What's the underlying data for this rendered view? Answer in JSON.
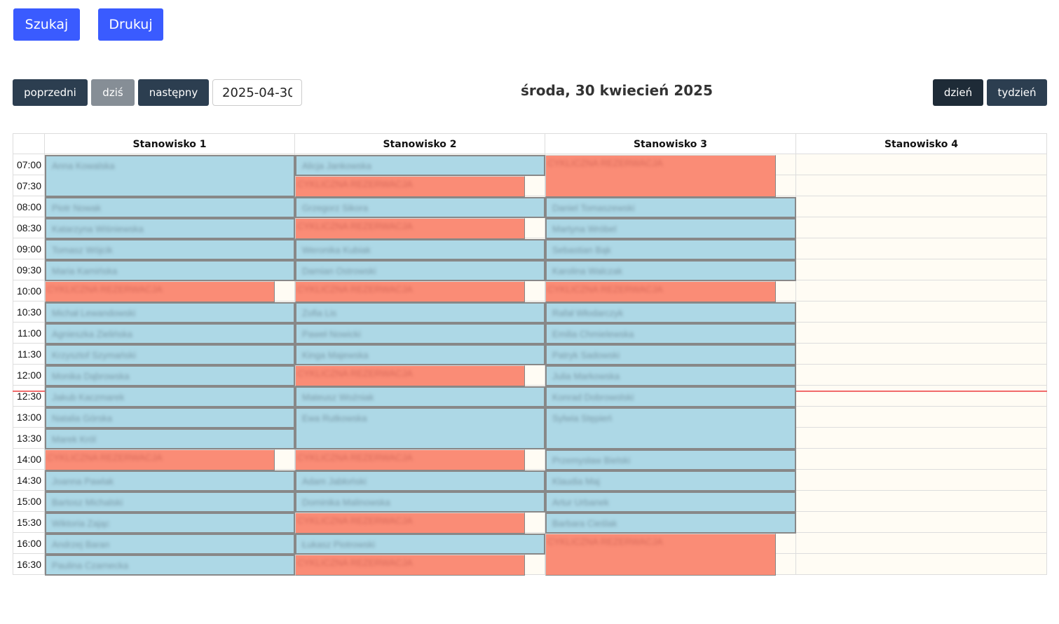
{
  "toolbar": {
    "search_label": "Szukaj",
    "print_label": "Drukuj"
  },
  "nav": {
    "prev_label": "poprzedni",
    "today_label": "dziś",
    "next_label": "następny",
    "date_value": "2025-04-30",
    "title": "środa, 30 kwiecień 2025",
    "day_label": "dzień",
    "week_label": "tydzień",
    "active_view": "dzień"
  },
  "colors": {
    "accent": "#3a5bff",
    "reservation": "#add8e6",
    "cyclic": "#fa8c76",
    "now_line": "#f06b6b"
  },
  "current_time_marker": "12:41",
  "columns": [
    "Stanowisko 1",
    "Stanowisko 2",
    "Stanowisko 3",
    "Stanowisko 4"
  ],
  "times": [
    "07:00",
    "07:30",
    "08:00",
    "08:30",
    "09:00",
    "09:30",
    "10:00",
    "10:30",
    "11:00",
    "11:30",
    "12:00",
    "12:30",
    "13:00",
    "13:30",
    "14:00",
    "14:30",
    "15:00",
    "15:30",
    "16:00",
    "16:30"
  ],
  "events": [
    {
      "col": 0,
      "start": "07:00",
      "end": "08:00",
      "label": "Anna Kowalska",
      "type": "normal"
    },
    {
      "col": 0,
      "start": "08:00",
      "end": "08:30",
      "label": "Piotr Nowak",
      "type": "normal"
    },
    {
      "col": 0,
      "start": "08:30",
      "end": "09:00",
      "label": "Katarzyna Wiśniewska",
      "type": "normal"
    },
    {
      "col": 0,
      "start": "09:00",
      "end": "09:30",
      "label": "Tomasz Wójcik",
      "type": "normal"
    },
    {
      "col": 0,
      "start": "09:30",
      "end": "10:00",
      "label": "Maria Kamińska",
      "type": "normal"
    },
    {
      "col": 0,
      "start": "10:00",
      "end": "10:30",
      "label": "CYKLICZNA REZERWACJA",
      "type": "cyclic"
    },
    {
      "col": 0,
      "start": "10:30",
      "end": "11:00",
      "label": "Michał Lewandowski",
      "type": "normal"
    },
    {
      "col": 0,
      "start": "11:00",
      "end": "11:30",
      "label": "Agnieszka Zielińska",
      "type": "normal"
    },
    {
      "col": 0,
      "start": "11:30",
      "end": "12:00",
      "label": "Krzysztof Szymański",
      "type": "normal"
    },
    {
      "col": 0,
      "start": "12:00",
      "end": "12:30",
      "label": "Monika Dąbrowska",
      "type": "normal"
    },
    {
      "col": 0,
      "start": "12:30",
      "end": "13:00",
      "label": "Jakub Kaczmarek",
      "type": "normal"
    },
    {
      "col": 0,
      "start": "13:00",
      "end": "13:30",
      "label": "Natalia Górska",
      "type": "normal"
    },
    {
      "col": 0,
      "start": "13:30",
      "end": "14:00",
      "label": "Marek Król",
      "type": "normal"
    },
    {
      "col": 0,
      "start": "14:00",
      "end": "14:30",
      "label": "CYKLICZNA REZERWACJA",
      "type": "cyclic"
    },
    {
      "col": 0,
      "start": "14:30",
      "end": "15:00",
      "label": "Joanna Pawlak",
      "type": "normal"
    },
    {
      "col": 0,
      "start": "15:00",
      "end": "15:30",
      "label": "Bartosz Michalski",
      "type": "normal"
    },
    {
      "col": 0,
      "start": "15:30",
      "end": "16:00",
      "label": "Wiktoria Zając",
      "type": "normal"
    },
    {
      "col": 0,
      "start": "16:00",
      "end": "16:30",
      "label": "Andrzej Baran",
      "type": "normal"
    },
    {
      "col": 0,
      "start": "16:30",
      "end": "17:00",
      "label": "Paulina Czarnecka",
      "type": "normal"
    },
    {
      "col": 1,
      "start": "07:00",
      "end": "07:30",
      "label": "Alicja Jankowska",
      "type": "normal"
    },
    {
      "col": 1,
      "start": "07:30",
      "end": "08:00",
      "label": "CYKLICZNA REZERWACJA",
      "type": "cyclic"
    },
    {
      "col": 1,
      "start": "08:00",
      "end": "08:30",
      "label": "Grzegorz Sikora",
      "type": "normal"
    },
    {
      "col": 1,
      "start": "08:30",
      "end": "09:00",
      "label": "CYKLICZNA REZERWACJA",
      "type": "cyclic"
    },
    {
      "col": 1,
      "start": "09:00",
      "end": "09:30",
      "label": "Weronika Kubiak",
      "type": "normal"
    },
    {
      "col": 1,
      "start": "09:30",
      "end": "10:00",
      "label": "Damian Ostrowski",
      "type": "normal"
    },
    {
      "col": 1,
      "start": "10:00",
      "end": "10:30",
      "label": "CYKLICZNA REZERWACJA",
      "type": "cyclic"
    },
    {
      "col": 1,
      "start": "10:30",
      "end": "11:00",
      "label": "Zofia Lis",
      "type": "normal"
    },
    {
      "col": 1,
      "start": "11:00",
      "end": "11:30",
      "label": "Paweł Nowicki",
      "type": "normal"
    },
    {
      "col": 1,
      "start": "11:30",
      "end": "12:00",
      "label": "Kinga Majewska",
      "type": "normal"
    },
    {
      "col": 1,
      "start": "12:00",
      "end": "12:30",
      "label": "CYKLICZNA REZERWACJA",
      "type": "cyclic"
    },
    {
      "col": 1,
      "start": "12:30",
      "end": "13:00",
      "label": "Mateusz Woźniak",
      "type": "normal"
    },
    {
      "col": 1,
      "start": "13:00",
      "end": "14:00",
      "label": "Ewa Rutkowska",
      "type": "normal"
    },
    {
      "col": 1,
      "start": "14:00",
      "end": "14:30",
      "label": "CYKLICZNA REZERWACJA",
      "type": "cyclic"
    },
    {
      "col": 1,
      "start": "14:30",
      "end": "15:00",
      "label": "Adam Jabłoński",
      "type": "normal"
    },
    {
      "col": 1,
      "start": "15:00",
      "end": "15:30",
      "label": "Dominika Malinowska",
      "type": "normal"
    },
    {
      "col": 1,
      "start": "15:30",
      "end": "16:00",
      "label": "CYKLICZNA REZERWACJA",
      "type": "cyclic"
    },
    {
      "col": 1,
      "start": "16:00",
      "end": "16:30",
      "label": "Łukasz Piotrowski",
      "type": "normal"
    },
    {
      "col": 1,
      "start": "16:30",
      "end": "17:00",
      "label": "CYKLICZNA REZERWACJA",
      "type": "cyclic"
    },
    {
      "col": 2,
      "start": "07:00",
      "end": "08:00",
      "label": "CYKLICZNA REZERWACJA",
      "type": "cyclic"
    },
    {
      "col": 2,
      "start": "08:00",
      "end": "08:30",
      "label": "Daniel Tomaszewski",
      "type": "normal"
    },
    {
      "col": 2,
      "start": "08:30",
      "end": "09:00",
      "label": "Martyna Wróbel",
      "type": "normal"
    },
    {
      "col": 2,
      "start": "09:00",
      "end": "09:30",
      "label": "Sebastian Bąk",
      "type": "normal"
    },
    {
      "col": 2,
      "start": "09:30",
      "end": "10:00",
      "label": "Karolina Walczak",
      "type": "normal"
    },
    {
      "col": 2,
      "start": "10:00",
      "end": "10:30",
      "label": "CYKLICZNA REZERWACJA",
      "type": "cyclic"
    },
    {
      "col": 2,
      "start": "10:30",
      "end": "11:00",
      "label": "Rafał Włodarczyk",
      "type": "normal"
    },
    {
      "col": 2,
      "start": "11:00",
      "end": "11:30",
      "label": "Emilia Chmielewska",
      "type": "normal"
    },
    {
      "col": 2,
      "start": "11:30",
      "end": "12:00",
      "label": "Patryk Sadowski",
      "type": "normal"
    },
    {
      "col": 2,
      "start": "12:00",
      "end": "12:30",
      "label": "Julia Markowska",
      "type": "normal"
    },
    {
      "col": 2,
      "start": "12:30",
      "end": "13:00",
      "label": "Konrad Dobrowolski",
      "type": "normal"
    },
    {
      "col": 2,
      "start": "13:00",
      "end": "14:00",
      "label": "Sylwia Stępień",
      "type": "normal"
    },
    {
      "col": 2,
      "start": "14:00",
      "end": "14:30",
      "label": "Przemysław Bielski",
      "type": "normal"
    },
    {
      "col": 2,
      "start": "14:30",
      "end": "15:00",
      "label": "Klaudia Maj",
      "type": "normal"
    },
    {
      "col": 2,
      "start": "15:00",
      "end": "15:30",
      "label": "Artur Urbanek",
      "type": "normal"
    },
    {
      "col": 2,
      "start": "15:30",
      "end": "16:00",
      "label": "Barbara Cieślak",
      "type": "normal"
    },
    {
      "col": 2,
      "start": "16:00",
      "end": "17:00",
      "label": "CYKLICZNA REZERWACJA",
      "type": "cyclic"
    }
  ]
}
